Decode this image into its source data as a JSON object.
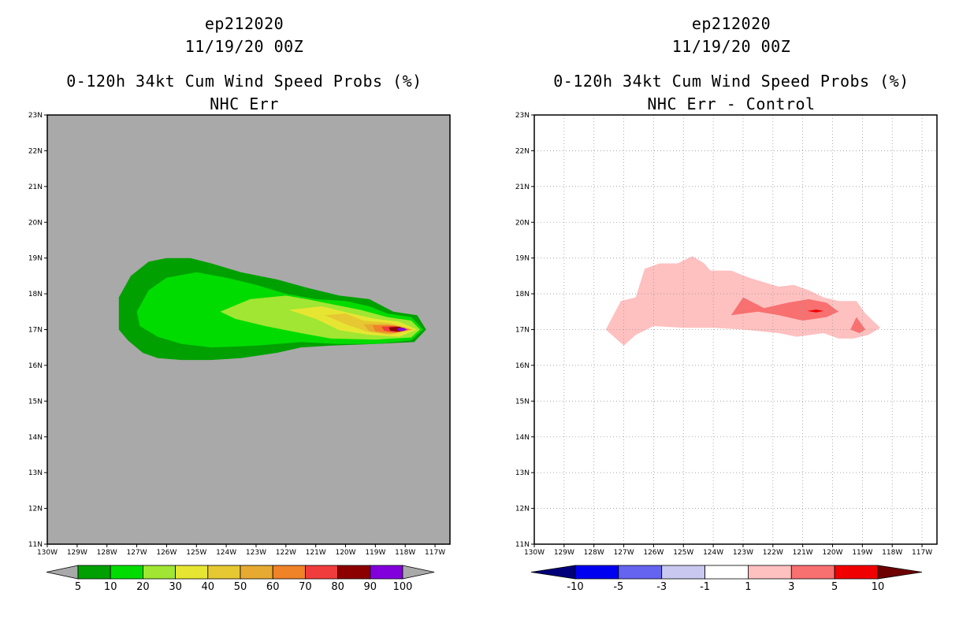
{
  "left": {
    "storm": "ep212020",
    "datetime": "11/19/20 00Z",
    "title": "0-120h 34kt Cum Wind Speed Probs (%)",
    "subtitle": "NHC Err",
    "colorbar": {
      "labels": [
        "5",
        "10",
        "20",
        "30",
        "40",
        "50",
        "60",
        "70",
        "80",
        "90",
        "100"
      ],
      "colors": [
        "#a9a9a9",
        "#00a000",
        "#00dc00",
        "#a0e632",
        "#e6e632",
        "#e6c832",
        "#e6aa32",
        "#f08228",
        "#f03c3c",
        "#8c0000",
        "#8200dc",
        "#a9a9a9"
      ]
    }
  },
  "right": {
    "storm": "ep212020",
    "datetime": "11/19/20 00Z",
    "title": "0-120h 34kt Cum Wind Speed Probs (%)",
    "subtitle": "NHC Err - Control",
    "colorbar": {
      "labels": [
        "-10",
        "-5",
        "-3",
        "-1",
        "1",
        "3",
        "5",
        "10"
      ],
      "colors": [
        "#00007a",
        "#0000f0",
        "#6464f0",
        "#c8c8f0",
        "#ffffff",
        "#ffc0c0",
        "#f87070",
        "#f00000",
        "#6e0000"
      ]
    }
  },
  "chart_data": [
    {
      "type": "heatmap",
      "title": "0-120h 34kt Cum Wind Speed Probs (%)",
      "subtitle": "NHC Err",
      "xlim": [
        -130,
        -116.5
      ],
      "ylim": [
        11,
        23
      ],
      "x_ticks": [
        "130W",
        "129W",
        "128W",
        "127W",
        "126W",
        "125W",
        "124W",
        "123W",
        "122W",
        "121W",
        "120W",
        "119W",
        "118W",
        "117W"
      ],
      "y_ticks": [
        "11N",
        "12N",
        "13N",
        "14N",
        "15N",
        "16N",
        "17N",
        "18N",
        "19N",
        "20N",
        "21N",
        "22N",
        "23N"
      ],
      "background_value": "<5",
      "contours": [
        {
          "level": 5,
          "color": "#00a000",
          "points": [
            [
              -127.6,
              17.4
            ],
            [
              -127.6,
              17.9
            ],
            [
              -127.2,
              18.5
            ],
            [
              -126.6,
              18.9
            ],
            [
              -126,
              19
            ],
            [
              -125.2,
              19
            ],
            [
              -124.5,
              18.85
            ],
            [
              -123.5,
              18.6
            ],
            [
              -122.3,
              18.4
            ],
            [
              -121.2,
              18.15
            ],
            [
              -120.2,
              17.95
            ],
            [
              -119.2,
              17.85
            ],
            [
              -118.4,
              17.5
            ],
            [
              -117.6,
              17.4
            ],
            [
              -117.3,
              17
            ],
            [
              -117.7,
              16.65
            ],
            [
              -119,
              16.6
            ],
            [
              -120.5,
              16.55
            ],
            [
              -121.5,
              16.5
            ],
            [
              -122.3,
              16.35
            ],
            [
              -123.5,
              16.2
            ],
            [
              -124.5,
              16.15
            ],
            [
              -125.5,
              16.15
            ],
            [
              -126.3,
              16.2
            ],
            [
              -126.8,
              16.35
            ],
            [
              -127.3,
              16.7
            ],
            [
              -127.6,
              17
            ]
          ]
        },
        {
          "level": 10,
          "color": "#00dc00",
          "points": [
            [
              -127,
              17.5
            ],
            [
              -126.6,
              18.1
            ],
            [
              -126,
              18.45
            ],
            [
              -125,
              18.6
            ],
            [
              -124,
              18.45
            ],
            [
              -123,
              18.25
            ],
            [
              -122,
              18
            ],
            [
              -121,
              17.85
            ],
            [
              -120,
              17.8
            ],
            [
              -119.2,
              17.65
            ],
            [
              -118.6,
              17.45
            ],
            [
              -117.8,
              17.35
            ],
            [
              -117.4,
              17
            ],
            [
              -117.8,
              16.7
            ],
            [
              -119,
              16.6
            ],
            [
              -120.3,
              16.6
            ],
            [
              -121.5,
              16.65
            ],
            [
              -123,
              16.55
            ],
            [
              -124.5,
              16.5
            ],
            [
              -125.5,
              16.6
            ],
            [
              -126.3,
              16.8
            ],
            [
              -126.9,
              17.1
            ]
          ]
        },
        {
          "level": 20,
          "color": "#a0e632",
          "points": [
            [
              -124.2,
              17.5
            ],
            [
              -123.2,
              17.85
            ],
            [
              -122,
              17.95
            ],
            [
              -121.3,
              17.85
            ],
            [
              -120.4,
              17.7
            ],
            [
              -119.5,
              17.55
            ],
            [
              -118.6,
              17.35
            ],
            [
              -117.8,
              17.25
            ],
            [
              -117.5,
              17
            ],
            [
              -117.8,
              16.78
            ],
            [
              -119,
              16.72
            ],
            [
              -120.5,
              16.75
            ],
            [
              -121.5,
              16.9
            ],
            [
              -122.7,
              17.1
            ],
            [
              -123.7,
              17.3
            ]
          ]
        },
        {
          "level": 30,
          "color": "#e6e632",
          "points": [
            [
              -121.9,
              17.55
            ],
            [
              -120.8,
              17.65
            ],
            [
              -119.8,
              17.45
            ],
            [
              -119,
              17.3
            ],
            [
              -118.2,
              17.22
            ],
            [
              -117.6,
              17
            ],
            [
              -118.2,
              16.8
            ],
            [
              -119.2,
              16.85
            ],
            [
              -120.2,
              16.98
            ],
            [
              -121,
              17.3
            ]
          ]
        },
        {
          "level": 40,
          "color": "#e6c832",
          "points": [
            [
              -120.7,
              17.4
            ],
            [
              -120,
              17.45
            ],
            [
              -119.4,
              17.25
            ],
            [
              -118.5,
              17.18
            ],
            [
              -117.7,
              17
            ],
            [
              -118.5,
              16.85
            ],
            [
              -119.3,
              16.95
            ],
            [
              -120,
              17.15
            ]
          ]
        },
        {
          "level": 50,
          "color": "#e6aa32",
          "points": [
            [
              -119.4,
              17.15
            ],
            [
              -118.6,
              17.15
            ],
            [
              -117.8,
              17
            ],
            [
              -118.6,
              16.88
            ],
            [
              -119.2,
              16.95
            ]
          ]
        },
        {
          "level": 60,
          "color": "#f08228",
          "points": [
            [
              -119.1,
              17.12
            ],
            [
              -118.4,
              17.12
            ],
            [
              -117.8,
              17
            ],
            [
              -118.4,
              16.9
            ],
            [
              -119,
              16.95
            ]
          ]
        },
        {
          "level": 70,
          "color": "#f03c3c",
          "points": [
            [
              -118.8,
              17.08
            ],
            [
              -118.3,
              17.1
            ],
            [
              -117.9,
              17
            ],
            [
              -118.3,
              16.92
            ],
            [
              -118.7,
              16.97
            ]
          ]
        },
        {
          "level": 80,
          "color": "#8c0000",
          "points": [
            [
              -118.55,
              17.06
            ],
            [
              -118.2,
              17.08
            ],
            [
              -117.95,
              17
            ],
            [
              -118.2,
              16.94
            ],
            [
              -118.5,
              16.97
            ]
          ]
        },
        {
          "level": 90,
          "color": "#8200dc",
          "points": [
            [
              -118.25,
              17.04
            ],
            [
              -118.05,
              17.05
            ],
            [
              -117.95,
              17
            ],
            [
              -118.05,
              16.96
            ],
            [
              -118.25,
              16.97
            ]
          ]
        }
      ]
    },
    {
      "type": "heatmap",
      "title": "0-120h 34kt Cum Wind Speed Probs (%)",
      "subtitle": "NHC Err - Control",
      "xlim": [
        -130,
        -116.5
      ],
      "ylim": [
        11,
        23
      ],
      "x_ticks": [
        "130W",
        "129W",
        "128W",
        "127W",
        "126W",
        "125W",
        "124W",
        "123W",
        "122W",
        "121W",
        "120W",
        "119W",
        "118W",
        "117W"
      ],
      "y_ticks": [
        "11N",
        "12N",
        "13N",
        "14N",
        "15N",
        "16N",
        "17N",
        "18N",
        "19N",
        "20N",
        "21N",
        "22N",
        "23N"
      ],
      "grid": true,
      "contours": [
        {
          "level": 1,
          "color": "#ffc0c0",
          "points": [
            [
              -127.6,
              17
            ],
            [
              -127.1,
              17.8
            ],
            [
              -126.6,
              17.9
            ],
            [
              -126.3,
              18.7
            ],
            [
              -125.8,
              18.85
            ],
            [
              -125.2,
              18.85
            ],
            [
              -124.7,
              19.05
            ],
            [
              -124.3,
              18.85
            ],
            [
              -124.1,
              18.65
            ],
            [
              -123.4,
              18.65
            ],
            [
              -122.8,
              18.45
            ],
            [
              -122.2,
              18.3
            ],
            [
              -121.8,
              18.2
            ],
            [
              -121.3,
              18.25
            ],
            [
              -120.8,
              18.1
            ],
            [
              -120.3,
              17.9
            ],
            [
              -119.8,
              17.8
            ],
            [
              -119.2,
              17.8
            ],
            [
              -118.9,
              17.45
            ],
            [
              -118.4,
              17.05
            ],
            [
              -118.8,
              16.85
            ],
            [
              -119.3,
              16.75
            ],
            [
              -119.8,
              16.75
            ],
            [
              -120.3,
              16.9
            ],
            [
              -121.2,
              16.8
            ],
            [
              -121.8,
              16.9
            ],
            [
              -122.4,
              16.95
            ],
            [
              -123,
              17
            ],
            [
              -124,
              17.05
            ],
            [
              -125,
              17.05
            ],
            [
              -126,
              17.1
            ],
            [
              -126.6,
              16.85
            ],
            [
              -127,
              16.55
            ]
          ]
        },
        {
          "level": 3,
          "color": "#f87070",
          "points": [
            [
              -123.4,
              17.4
            ],
            [
              -123,
              17.9
            ],
            [
              -122.3,
              17.6
            ],
            [
              -121.5,
              17.75
            ],
            [
              -120.8,
              17.85
            ],
            [
              -120.2,
              17.75
            ],
            [
              -119.8,
              17.5
            ],
            [
              -120.2,
              17.35
            ],
            [
              -121,
              17.25
            ],
            [
              -121.8,
              17.4
            ],
            [
              -122.5,
              17.5
            ]
          ]
        },
        {
          "level": 3,
          "color": "#f87070",
          "points": [
            [
              -119.2,
              17.35
            ],
            [
              -118.9,
              17
            ],
            [
              -119.1,
              16.9
            ],
            [
              -119.4,
              17
            ]
          ]
        },
        {
          "level": 5,
          "color": "#f00000",
          "points": [
            [
              -120.85,
              17.52
            ],
            [
              -120.55,
              17.56
            ],
            [
              -120.3,
              17.52
            ],
            [
              -120.55,
              17.48
            ]
          ]
        }
      ]
    }
  ]
}
